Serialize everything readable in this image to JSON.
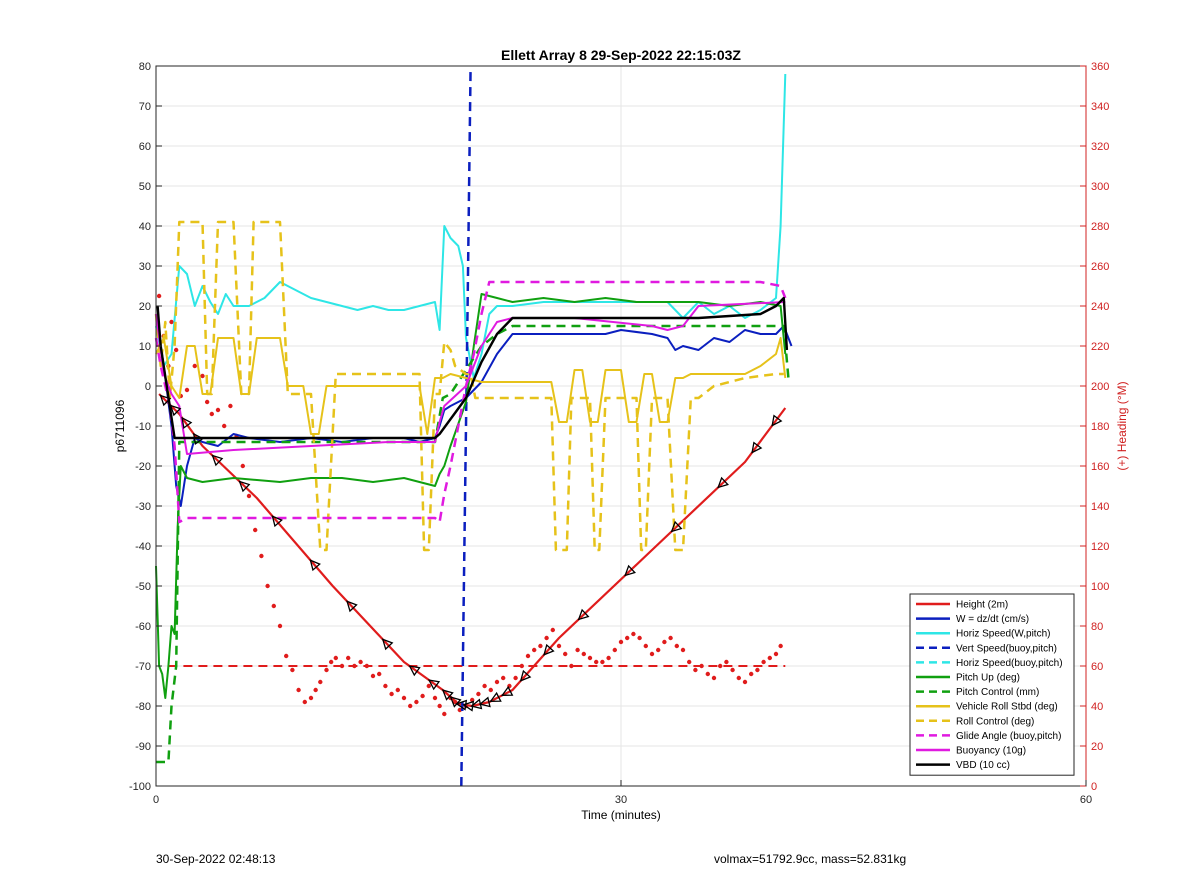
{
  "footer": {
    "left": "30-Sep-2022 02:48:13",
    "right": "volmax=51792.9cc, mass=52.831kg"
  },
  "colors": {
    "red": "#e01c1c",
    "blue": "#0b1fbf",
    "cyan": "#2ee6e6",
    "green": "#10a010",
    "gold": "#e6c21a",
    "magenta": "#e01ae0",
    "black": "#000000",
    "axis_right": "#d02020"
  },
  "chart_data": {
    "type": "line",
    "title": "Ellett Array 8 29-Sep-2022 22:15:03Z",
    "xlabel": "Time (minutes)",
    "ylabel": "p6711096",
    "y2label": "(+) Heading (°M)",
    "xlim": [
      0,
      60
    ],
    "ylim": [
      -100,
      80
    ],
    "y2lim": [
      0,
      360
    ],
    "xticks": [
      0,
      30,
      60
    ],
    "yticks": [
      -100,
      -90,
      -80,
      -70,
      -60,
      -50,
      -40,
      -30,
      -20,
      -10,
      0,
      10,
      20,
      30,
      40,
      50,
      60,
      70,
      80
    ],
    "y2ticks": [
      0,
      20,
      40,
      60,
      80,
      100,
      120,
      140,
      160,
      180,
      200,
      220,
      240,
      260,
      280,
      300,
      320,
      340,
      360
    ],
    "grid": true,
    "legend_position": "bottom-right",
    "series": [
      {
        "name": "Height (2m)",
        "color": "#e01c1c",
        "style": "solid",
        "width": 2.2,
        "x": [
          0.2,
          1.5,
          3,
          6.5,
          11.4,
          16,
          18.5,
          19.5,
          20.4,
          21.5,
          23,
          26,
          32,
          38,
          40.6
        ],
        "y": [
          -2,
          -7,
          -15,
          -28,
          -50,
          -69,
          -76,
          -79.5,
          -80,
          -79,
          -76,
          -63,
          -41,
          -19,
          -5.5
        ]
      },
      {
        "name": "W = dz/dt (cm/s)",
        "color": "#0b1fbf",
        "style": "solid",
        "width": 2,
        "x": [
          0,
          0.5,
          1,
          1.3,
          1.6,
          2,
          2.5,
          3,
          4,
          5,
          6,
          8,
          10,
          12,
          14,
          16,
          17,
          18,
          18.3,
          18.6,
          19,
          20,
          21,
          22,
          23,
          25,
          27,
          29,
          30,
          32,
          33,
          33.5,
          34,
          35,
          36,
          37,
          38,
          39,
          40,
          40.5,
          41
        ],
        "y": [
          18,
          5,
          -10,
          -25,
          -30,
          -20,
          -13,
          -14,
          -15,
          -12,
          -13,
          -14,
          -13,
          -14,
          -13,
          -13,
          -14,
          -13,
          -10,
          -6,
          -5,
          -3,
          1,
          8,
          13,
          13,
          13,
          13,
          14,
          13,
          12,
          9,
          10,
          9,
          12,
          11,
          14,
          13,
          13,
          15,
          10
        ]
      },
      {
        "name": "Horiz Speed(W,pitch)",
        "color": "#2ee6e6",
        "style": "solid",
        "width": 2,
        "x": [
          0,
          0.5,
          1,
          1.5,
          2,
          2.5,
          3,
          3.5,
          4,
          4.5,
          5,
          6,
          7,
          8,
          9,
          10,
          11,
          12,
          13,
          14,
          15,
          16,
          17,
          18,
          18.3,
          18.6,
          19,
          19.5,
          19.8,
          20,
          20.5,
          21,
          21.5,
          22,
          23,
          25,
          27,
          29,
          30,
          32,
          33,
          34,
          35,
          36,
          37,
          38,
          39,
          40,
          40.3,
          40.6
        ],
        "y": [
          15,
          5,
          8,
          30,
          28,
          20,
          25,
          21,
          18,
          23,
          20,
          20,
          22,
          26,
          24,
          22,
          21,
          20,
          19,
          20,
          19,
          19,
          20,
          21,
          14,
          40,
          37,
          35,
          30,
          12,
          2,
          8,
          18,
          20,
          20,
          21,
          21,
          21,
          21,
          21,
          21,
          17,
          21,
          18,
          20,
          17,
          19,
          22,
          40,
          78
        ]
      },
      {
        "name": "Vert Speed(buoy,pitch)",
        "color": "#0b1fbf",
        "style": "dashed",
        "width": 2.5,
        "x": [
          19.7,
          19.9,
          20.1,
          20.3
        ],
        "y": [
          -100,
          -40,
          20,
          80
        ]
      },
      {
        "name": "Horiz Speed(buoy,pitch)",
        "color": "#2ee6e6",
        "style": "dashed",
        "width": 2.5,
        "x": [],
        "y": []
      },
      {
        "name": "Pitch Up (deg)",
        "color": "#10a010",
        "style": "solid",
        "width": 2,
        "x": [
          0,
          0.2,
          0.4,
          0.6,
          0.8,
          1,
          1.2,
          1.4,
          1.6,
          2,
          3,
          5,
          8,
          10,
          12,
          14,
          16,
          17,
          18,
          18.3,
          18.6,
          19,
          20,
          20.5,
          21,
          22,
          23,
          25,
          27,
          29,
          31,
          33,
          35,
          37,
          39,
          40.3,
          40.6
        ],
        "y": [
          -45,
          -70,
          -72,
          -78,
          -70,
          -60,
          -62,
          -35,
          -20,
          -23,
          -24,
          -23,
          -24,
          -23,
          -23,
          -24,
          -23,
          -24,
          -25,
          -22,
          -20,
          -15,
          -4,
          10,
          23,
          22,
          21,
          22,
          21,
          22,
          21,
          21,
          21,
          20,
          21,
          20,
          8
        ]
      },
      {
        "name": "Pitch Control (mm)",
        "color": "#10a010",
        "style": "dashed",
        "width": 2.5,
        "x": [
          0,
          0.8,
          1,
          1.3,
          1.5,
          2,
          5,
          10,
          15,
          18,
          18.5,
          19,
          20,
          21,
          22,
          23,
          40.5,
          40.8
        ],
        "y": [
          -94,
          -94,
          -80,
          -70,
          -14,
          -14,
          -14,
          -14,
          -14,
          -14,
          -3,
          -2,
          4,
          10,
          13,
          15,
          15,
          2
        ]
      },
      {
        "name": "Vehicle Roll Stbd (deg)",
        "color": "#e6c21a",
        "style": "solid",
        "width": 2,
        "x": [
          0,
          0.5,
          1,
          1.5,
          2,
          2.5,
          3,
          3.5,
          4,
          4.5,
          5,
          5.5,
          6,
          6.5,
          7,
          7.5,
          8,
          8.5,
          9,
          9.5,
          10,
          10.5,
          11,
          11.5,
          12,
          13,
          14,
          15,
          16,
          17,
          17.5,
          18,
          18.5,
          19,
          20,
          21,
          22,
          23,
          24,
          25,
          25.5,
          26,
          26.5,
          27,
          27.5,
          28,
          28.5,
          29,
          29.5,
          30,
          30.5,
          31,
          31.5,
          32,
          32.5,
          33,
          33.5,
          34,
          34.5,
          35,
          36,
          37,
          38,
          39,
          40,
          40.3,
          40.6
        ],
        "y": [
          8,
          12,
          0,
          -3,
          10,
          10,
          -2,
          -2,
          12,
          12,
          12,
          -2,
          -2,
          12,
          12,
          12,
          12,
          0,
          0,
          0,
          -12,
          -12,
          0,
          0,
          0,
          0,
          0,
          0,
          0,
          0,
          -12,
          2,
          2,
          3,
          2,
          1,
          1,
          1,
          1,
          1,
          1,
          -9,
          -9,
          4,
          4,
          -9,
          -9,
          4,
          4,
          4,
          -9,
          -9,
          3,
          3,
          -9,
          -9,
          2,
          2,
          3,
          3,
          3,
          3,
          3,
          5,
          8,
          12,
          2
        ]
      },
      {
        "name": "Roll Control (deg)",
        "color": "#e6c21a",
        "style": "dashed",
        "width": 2.5,
        "x": [
          0,
          0.3,
          0.6,
          0.9,
          1.2,
          1.5,
          2,
          3,
          3.3,
          3.6,
          4,
          5,
          5.5,
          6,
          6.3,
          7,
          8,
          8.5,
          9,
          10,
          10.6,
          11,
          11.6,
          12,
          13,
          15,
          17,
          17.3,
          17.6,
          18,
          18.3,
          18.6,
          19,
          19.3,
          20,
          20.3,
          20.6,
          21,
          21.3,
          22,
          24,
          25.5,
          25.8,
          26.5,
          26.8,
          27,
          28,
          28.3,
          28.6,
          29,
          29.5,
          30,
          31,
          31.3,
          31.6,
          32,
          32.5,
          33,
          33.5,
          34,
          34.5,
          35,
          36,
          38,
          40,
          40.5
        ],
        "y": [
          18,
          5,
          16,
          -3,
          10,
          41,
          41,
          41,
          -2,
          -2,
          41,
          41,
          -2,
          -2,
          41,
          41,
          41,
          -2,
          -2,
          -2,
          -41,
          -41,
          3,
          3,
          3,
          3,
          3,
          -41,
          -41,
          -2,
          -2,
          11,
          9,
          5,
          3,
          3,
          -3,
          -3,
          -3,
          -3,
          -3,
          -3,
          -41,
          -41,
          -3,
          -3,
          -3,
          -41,
          -41,
          -3,
          -3,
          -3,
          -3,
          -41,
          -41,
          -3,
          -3,
          -3,
          -41,
          -41,
          -3,
          -3,
          0,
          2,
          3,
          3
        ]
      },
      {
        "name": "Glide Angle (buoy,pitch)",
        "color": "#e01ae0",
        "style": "dashed",
        "width": 2.5,
        "x": [
          0,
          0.3,
          0.6,
          0.9,
          1.2,
          1.5,
          2,
          4,
          6,
          8,
          10,
          12,
          14,
          16,
          17,
          18,
          18.3,
          18.6,
          19,
          19.5,
          20,
          20.5,
          21,
          21.5,
          22,
          23,
          25,
          27,
          29,
          31,
          33,
          34,
          35,
          37,
          39,
          40.3,
          40.6
        ],
        "y": [
          12,
          5,
          0,
          -5,
          -15,
          -34,
          -33,
          -33,
          -33,
          -33,
          -33,
          -33,
          -33,
          -33,
          -33,
          -33,
          -34,
          -27,
          -20,
          -10,
          0,
          8,
          18,
          26,
          26,
          26,
          26,
          26,
          26,
          26,
          26,
          26,
          26,
          26,
          26,
          25,
          22
        ]
      },
      {
        "name": "Buoyancy (10g)",
        "color": "#e01ae0",
        "style": "solid",
        "width": 2,
        "x": [
          0,
          0.5,
          1,
          1.5,
          2,
          5,
          10,
          15,
          18,
          18.3,
          18.6,
          20,
          21,
          22,
          23,
          27,
          32,
          33,
          34,
          35,
          40.6
        ],
        "y": [
          18,
          3,
          -2,
          -5,
          -17,
          -16,
          -15,
          -14,
          -14,
          -9,
          -5,
          0,
          10,
          16,
          17,
          17,
          15,
          14,
          15,
          20,
          21
        ]
      },
      {
        "name": "VBD (10 cc)",
        "color": "#000000",
        "style": "solid",
        "width": 2.4,
        "x": [
          0.1,
          0.3,
          1.2,
          2,
          10,
          18,
          18.3,
          20,
          21,
          22,
          23,
          25,
          30,
          35,
          39,
          40,
          40.5,
          40.7
        ],
        "y": [
          20,
          10,
          -13,
          -13,
          -13,
          -13,
          -12,
          -3,
          6,
          13,
          17,
          17,
          17,
          17,
          18,
          20,
          22,
          9
        ]
      }
    ],
    "heading_series": {
      "axis": "right",
      "color": "#e01c1c",
      "reference_line_value": 60,
      "x": [
        0.2,
        0.5,
        0.8,
        1,
        1.3,
        1.6,
        2,
        2.5,
        3,
        3.3,
        3.6,
        4,
        4.4,
        4.8,
        5.2,
        5.6,
        6,
        6.4,
        6.8,
        7.2,
        7.6,
        8,
        8.4,
        8.8,
        9.2,
        9.6,
        10,
        10.3,
        10.6,
        11,
        11.3,
        11.6,
        12,
        12.4,
        12.8,
        13.2,
        13.6,
        14,
        14.4,
        14.8,
        15.2,
        15.6,
        16,
        16.4,
        16.8,
        17.2,
        17.6,
        18,
        18.3,
        18.6,
        19,
        19.3,
        19.6,
        20,
        20.4,
        20.8,
        21.2,
        21.6,
        22,
        22.4,
        22.8,
        23.2,
        23.6,
        24,
        24.4,
        24.8,
        25.2,
        25.6,
        26,
        26.4,
        26.8,
        27.2,
        27.6,
        28,
        28.4,
        28.8,
        29.2,
        29.6,
        30,
        30.4,
        30.8,
        31.2,
        31.6,
        32,
        32.4,
        32.8,
        33.2,
        33.6,
        34,
        34.4,
        34.8,
        35.2,
        35.6,
        36,
        36.4,
        36.8,
        37.2,
        37.6,
        38,
        38.4,
        38.8,
        39.2,
        39.6,
        40,
        40.3
      ],
      "y": [
        245,
        225,
        210,
        232,
        218,
        195,
        198,
        210,
        205,
        192,
        186,
        188,
        180,
        190,
        175,
        160,
        145,
        128,
        115,
        100,
        90,
        80,
        65,
        58,
        48,
        42,
        44,
        48,
        52,
        58,
        62,
        64,
        60,
        64,
        60,
        62,
        60,
        55,
        56,
        50,
        46,
        48,
        44,
        40,
        42,
        45,
        50,
        44,
        40,
        36,
        44,
        42,
        38,
        40,
        43,
        46,
        50,
        48,
        52,
        54,
        50,
        54,
        60,
        65,
        68,
        70,
        74,
        78,
        70,
        66,
        60,
        68,
        66,
        64,
        62,
        62,
        64,
        68,
        72,
        74,
        76,
        74,
        70,
        66,
        68,
        72,
        74,
        70,
        68,
        62,
        58,
        60,
        56,
        54,
        60,
        62,
        58,
        54,
        52,
        56,
        58,
        62,
        64,
        66,
        70
      ]
    }
  }
}
